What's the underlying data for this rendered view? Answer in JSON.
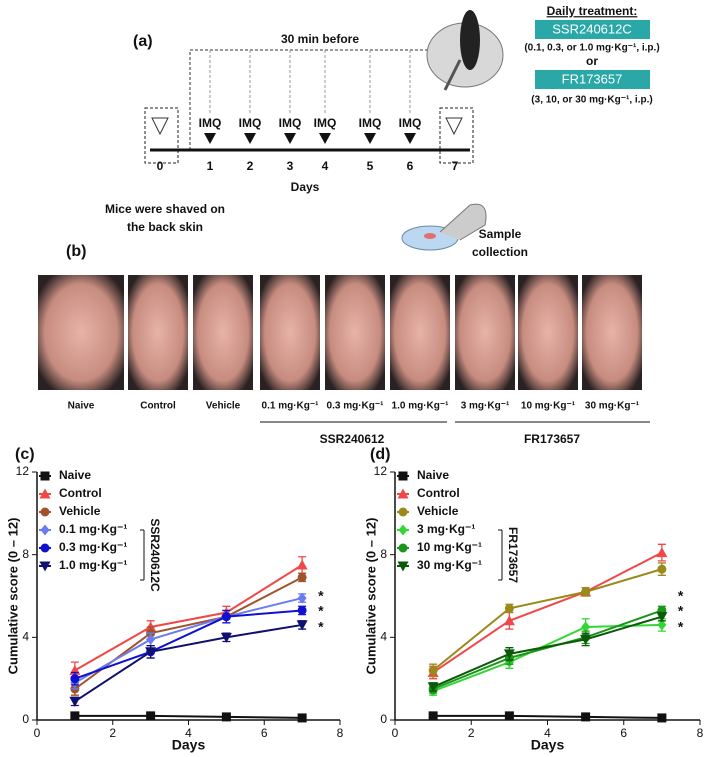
{
  "panel_a": {
    "label": "(a)",
    "pretreat": "30 min before",
    "imq": [
      "IMQ",
      "IMQ",
      "IMQ",
      "IMQ",
      "IMQ",
      "IMQ"
    ],
    "days": [
      "0",
      "1",
      "2",
      "3",
      "4",
      "5",
      "6",
      "7"
    ],
    "axis_label": "Days",
    "shave": [
      "Mice were shaved on",
      "the back skin"
    ],
    "treatment_title": "Daily treatment:",
    "drug1": "SSR240612C",
    "dose1": "(0.1, 0.3, or 1.0 mg·Kg⁻¹, i.p.)",
    "or": "or",
    "drug2": "FR173657",
    "dose2": "(3, 10, or 30 mg·Kg⁻¹, i.p.)",
    "sample": [
      "Sample",
      "collection"
    ]
  },
  "panel_b": {
    "label": "(b)",
    "photos": [
      "Naive",
      "Control",
      "Vehicle",
      "0.1 mg·Kg⁻¹",
      "0.3 mg·Kg⁻¹",
      "1.0 mg·Kg⁻¹",
      "3 mg·Kg⁻¹",
      "10 mg·Kg⁻¹",
      "30 mg·Kg⁻¹"
    ],
    "groups": [
      "SSR240612",
      "FR173657"
    ]
  },
  "chart_data": [
    {
      "type": "line",
      "panel": "(c)",
      "xlabel": "Days",
      "ylabel": "Cumulative score  (0 – 12)",
      "group": "SSR240612C",
      "x": [
        1,
        3,
        5,
        7
      ],
      "xlim": [
        0,
        8
      ],
      "xticks": [
        0,
        2,
        4,
        6,
        8
      ],
      "ylim": [
        0,
        12
      ],
      "yticks": [
        0,
        4,
        8,
        12
      ],
      "annotations": [
        "*",
        "*",
        "*"
      ],
      "series": [
        {
          "name": "Naive",
          "color": "#111111",
          "marker": "square",
          "values": [
            0.2,
            0.2,
            0.15,
            0.1
          ],
          "errors": [
            0.05,
            0.05,
            0.05,
            0.05
          ]
        },
        {
          "name": "Control",
          "color": "#f04848",
          "marker": "triangle",
          "values": [
            2.4,
            4.5,
            5.2,
            7.5
          ],
          "errors": [
            0.4,
            0.3,
            0.3,
            0.4
          ]
        },
        {
          "name": "Vehicle",
          "color": "#a0522d",
          "marker": "circle",
          "values": [
            1.5,
            4.2,
            5.0,
            6.9
          ],
          "errors": [
            0.3,
            0.3,
            0.3,
            0.2
          ]
        },
        {
          "name": "0.1 mg·Kg⁻¹",
          "color": "#6a7cf0",
          "marker": "diamond",
          "values": [
            1.8,
            3.9,
            5.0,
            5.9
          ],
          "errors": [
            0.3,
            0.3,
            0.3,
            0.2
          ]
        },
        {
          "name": "0.3 mg·Kg⁻¹",
          "color": "#1010d0",
          "marker": "circle",
          "values": [
            2.0,
            3.3,
            5.0,
            5.3
          ],
          "errors": [
            0.3,
            0.3,
            0.3,
            0.2
          ]
        },
        {
          "name": "1.0 mg·Kg⁻¹",
          "color": "#101070",
          "marker": "triangle-down",
          "values": [
            0.9,
            3.3,
            4.0,
            4.6
          ],
          "errors": [
            0.2,
            0.3,
            0.2,
            0.2
          ]
        }
      ]
    },
    {
      "type": "line",
      "panel": "(d)",
      "xlabel": "Days",
      "ylabel": "Cumulative score  (0 – 12)",
      "group": "FR173657",
      "x": [
        1,
        3,
        5,
        7
      ],
      "xlim": [
        0,
        8
      ],
      "xticks": [
        0,
        2,
        4,
        6,
        8
      ],
      "ylim": [
        0,
        12
      ],
      "yticks": [
        0,
        4,
        8,
        12
      ],
      "annotations": [
        "*",
        "*",
        "*"
      ],
      "series": [
        {
          "name": "Naive",
          "color": "#111111",
          "marker": "square",
          "values": [
            0.2,
            0.2,
            0.15,
            0.1
          ],
          "errors": [
            0.05,
            0.05,
            0.05,
            0.05
          ]
        },
        {
          "name": "Control",
          "color": "#f04848",
          "marker": "triangle",
          "values": [
            2.3,
            4.8,
            6.2,
            8.1
          ],
          "errors": [
            0.3,
            0.4,
            0.2,
            0.4
          ]
        },
        {
          "name": "Vehicle",
          "color": "#9a8a1a",
          "marker": "circle",
          "values": [
            2.4,
            5.4,
            6.2,
            7.3
          ],
          "errors": [
            0.3,
            0.2,
            0.2,
            0.3
          ]
        },
        {
          "name": "3 mg·Kg⁻¹",
          "color": "#33d633",
          "marker": "diamond",
          "values": [
            1.4,
            2.8,
            4.5,
            4.6
          ],
          "errors": [
            0.2,
            0.3,
            0.4,
            0.3
          ]
        },
        {
          "name": "10 mg·Kg⁻¹",
          "color": "#1a961a",
          "marker": "circle",
          "values": [
            1.5,
            3.0,
            4.0,
            5.3
          ],
          "errors": [
            0.2,
            0.3,
            0.3,
            0.2
          ]
        },
        {
          "name": "30 mg·Kg⁻¹",
          "color": "#0a5a0a",
          "marker": "triangle-down",
          "values": [
            1.6,
            3.2,
            3.9,
            5.0
          ],
          "errors": [
            0.2,
            0.3,
            0.3,
            0.2
          ]
        }
      ]
    }
  ]
}
